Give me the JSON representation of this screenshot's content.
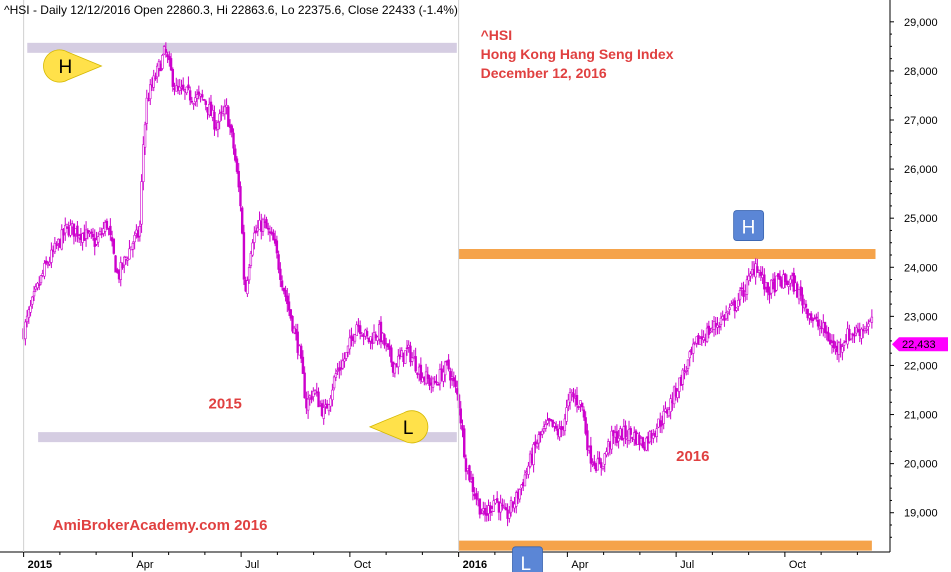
{
  "header": "^HSI - Daily 12/12/2016 Open 22860.3, Hi 22863.6, Lo 22375.6, Close 22433 (-1.4%)",
  "chart_data": {
    "type": "candlestick",
    "symbol": "^HSI",
    "title_lines": [
      "^HSI",
      "Hong Kong Hang Seng Index",
      "December 12, 2016"
    ],
    "ylim": [
      18200,
      29200
    ],
    "y_ticks": [
      19000,
      20000,
      21000,
      22000,
      23000,
      24000,
      25000,
      26000,
      27000,
      28000,
      29000
    ],
    "y_tick_labels": [
      "19,000",
      "20,000",
      "21,000",
      "22,000",
      "23,000",
      "24,000",
      "25,000",
      "26,000",
      "27,000",
      "28,000",
      "29,000"
    ],
    "x_ticks": [
      {
        "label": "2015",
        "bold": true,
        "t": 0
      },
      {
        "label": "Apr",
        "bold": false,
        "t": 3
      },
      {
        "label": "Jul",
        "bold": false,
        "t": 6
      },
      {
        "label": "Oct",
        "bold": false,
        "t": 9
      },
      {
        "label": "2016",
        "bold": true,
        "t": 12
      },
      {
        "label": "Apr",
        "bold": false,
        "t": 15
      },
      {
        "label": "Jul",
        "bold": false,
        "t": 18
      },
      {
        "label": "Oct",
        "bold": false,
        "t": 21
      }
    ],
    "x_range_months": [
      -0.1,
      23.9
    ],
    "path_points": [
      [
        0,
        22700
      ],
      [
        0.3,
        23400
      ],
      [
        0.6,
        24000
      ],
      [
        0.9,
        24400
      ],
      [
        1.2,
        24800
      ],
      [
        1.6,
        24700
      ],
      [
        2.0,
        24500
      ],
      [
        2.3,
        24900
      ],
      [
        2.6,
        23800
      ],
      [
        3.0,
        24500
      ],
      [
        3.2,
        24700
      ],
      [
        3.3,
        26500
      ],
      [
        3.4,
        27400
      ],
      [
        3.6,
        27800
      ],
      [
        3.9,
        28400
      ],
      [
        4.2,
        27600
      ],
      [
        4.6,
        27500
      ],
      [
        5.0,
        27400
      ],
      [
        5.3,
        26900
      ],
      [
        5.6,
        27200
      ],
      [
        5.8,
        26400
      ],
      [
        6.0,
        25200
      ],
      [
        6.1,
        23400
      ],
      [
        6.3,
        24600
      ],
      [
        6.6,
        24900
      ],
      [
        6.9,
        24500
      ],
      [
        7.2,
        23500
      ],
      [
        7.6,
        22300
      ],
      [
        7.8,
        21200
      ],
      [
        8.0,
        21500
      ],
      [
        8.3,
        21000
      ],
      [
        8.6,
        21800
      ],
      [
        8.9,
        22200
      ],
      [
        9.2,
        22900
      ],
      [
        9.5,
        22500
      ],
      [
        9.8,
        22700
      ],
      [
        10.2,
        22000
      ],
      [
        10.6,
        22300
      ],
      [
        11.0,
        21800
      ],
      [
        11.3,
        21600
      ],
      [
        11.7,
        22000
      ],
      [
        12.0,
        21300
      ],
      [
        12.2,
        20000
      ],
      [
        12.4,
        19500
      ],
      [
        12.7,
        18900
      ],
      [
        13.0,
        19300
      ],
      [
        13.3,
        18900
      ],
      [
        13.6,
        19300
      ],
      [
        13.9,
        19900
      ],
      [
        14.2,
        20500
      ],
      [
        14.5,
        20800
      ],
      [
        14.8,
        20600
      ],
      [
        15.1,
        21400
      ],
      [
        15.4,
        21200
      ],
      [
        15.6,
        20200
      ],
      [
        15.9,
        19900
      ],
      [
        16.2,
        20500
      ],
      [
        16.5,
        20600
      ],
      [
        16.8,
        20600
      ],
      [
        17.1,
        20400
      ],
      [
        17.4,
        20700
      ],
      [
        17.7,
        21000
      ],
      [
        18.0,
        21500
      ],
      [
        18.3,
        22000
      ],
      [
        18.6,
        22500
      ],
      [
        18.9,
        22700
      ],
      [
        19.2,
        22900
      ],
      [
        19.6,
        23200
      ],
      [
        20.0,
        23700
      ],
      [
        20.2,
        24100
      ],
      [
        20.5,
        23500
      ],
      [
        20.8,
        23700
      ],
      [
        21.2,
        23700
      ],
      [
        21.5,
        23300
      ],
      [
        21.8,
        22900
      ],
      [
        22.1,
        22700
      ],
      [
        22.4,
        22300
      ],
      [
        22.7,
        22600
      ],
      [
        23.0,
        22700
      ],
      [
        23.4,
        22860
      ]
    ],
    "last_close": 22433,
    "last_close_label": "22,433",
    "annotations": [
      {
        "label": "2015",
        "x_month": 5.1,
        "y": 21120
      },
      {
        "label": "2016",
        "x_month": 18.0,
        "y": 20050
      },
      {
        "label": "AmiBrokerAcademy.com  2016",
        "x_month": 0.8,
        "y": 18650
      }
    ],
    "levels": [
      {
        "name": "2015 high",
        "color": "#d5cde2",
        "y": 28470,
        "x_from": 0.1,
        "x_to": 11.95
      },
      {
        "name": "2015 low",
        "color": "#d5cde2",
        "y": 20540,
        "x_from": 0.4,
        "x_to": 11.95
      },
      {
        "name": "2016 high",
        "color": "#f5a34a",
        "y": 24270,
        "x_from": 12.0,
        "x_to": 23.5
      },
      {
        "name": "2016 low",
        "color": "#f5a34a",
        "y": 18330,
        "x_from": 12.0,
        "x_to": 23.4
      }
    ],
    "markers": [
      {
        "letter": "H",
        "shape": "bubble",
        "color": "#ffe14a",
        "x_month": 1.1,
        "y": 28100
      },
      {
        "letter": "L",
        "shape": "bubble",
        "color": "#ffe14a",
        "x_month": 10.6,
        "y": 20750
      },
      {
        "letter": "H",
        "shape": "square",
        "color": "#5b86d6",
        "x_month": 20.0,
        "y": 24850
      },
      {
        "letter": "L",
        "shape": "square",
        "color": "#5b86d6",
        "x_month": 13.9,
        "y": 18000
      }
    ],
    "colors": {
      "candle": "#cc00cc",
      "divider": "#d0d0d0",
      "price_tag": "#ff00ff",
      "title": "#e04040"
    }
  }
}
